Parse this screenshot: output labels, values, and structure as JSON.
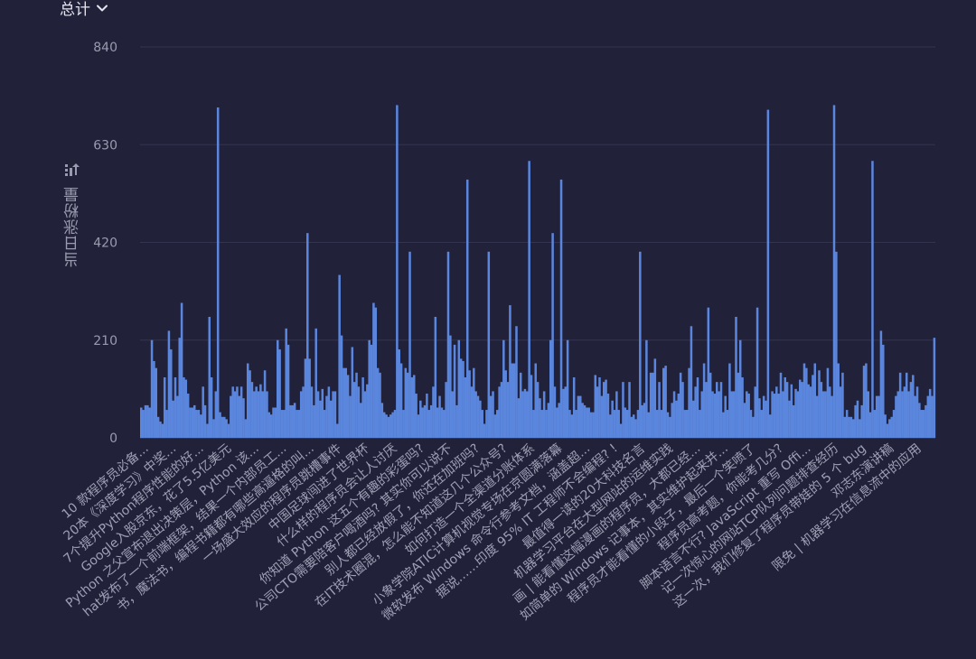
{
  "header": {
    "metric_label": "总计"
  },
  "y_axis_icon": "sort-icon",
  "colors": {
    "background": "#22213a",
    "bar": "#5b86dd",
    "grid": "#34344f",
    "axis_text": "#9a9bb0"
  },
  "chart_data": {
    "type": "bar",
    "ylabel": "当日涨粉量",
    "ylim": [
      0,
      840
    ],
    "yticks": [
      0,
      210,
      420,
      630,
      840
    ],
    "grid": true,
    "x_labels": [
      "10 款程序员必备...",
      "20本《深度学习》中奖...",
      "7个提升Python程序性能的好...",
      "Google入股京东，花了5.5亿美元",
      "Python 之父宣布退出决策层，Python 该...",
      "hat发布了一个前端框架，结果一个内部员工...",
      "书，魔法书，编程书籍都有哪些高逼格的叫...",
      "一场盛大效应的程序员跳槽事件",
      "中国足球闯进了世界杯",
      "什么样的程序员会让人讨厌",
      "你知道 Python 这五个有趣的彩蛋吗?",
      "公司CTO需要陪客户喝酒吗? 其实你可以说不",
      "别人都已经放假了，你还在加班吗?",
      "在IT技术圈混，怎么能不知道这几个公众号?",
      "如何打造一个全渠道分账体系",
      "小象学院ATIC计算机视觉专场在京圆满落幕",
      "微软发布 Windows 命令行参考文档，涵盖超...",
      "据说……印度 95% IT 工程师不会编程? !",
      "最值得一读的20大科技名言",
      "机器学习平台在大型网站的运维实践",
      "画 | 能看懂这幅漫画的程序员，大都已经...",
      "如简单的 Windows 记事本，其实维护起来并...",
      "程序员才能看懂的小段子，最后一个笑喷了",
      "程序员高考题，你能考几分?",
      "脚本语言不行? JavaScript 重写 Offi...",
      "记一次惊心的网站TCP队列问题排查经历",
      "这一次，我们修复了程序员带娃的 5 个 bug",
      "邓志东演讲稿",
      "限免 | 机器学习在信息流中的应用"
    ],
    "values": [
      65,
      60,
      70,
      70,
      65,
      210,
      165,
      150,
      45,
      35,
      30,
      130,
      60,
      230,
      190,
      80,
      130,
      90,
      215,
      290,
      130,
      125,
      95,
      65,
      65,
      70,
      60,
      60,
      50,
      110,
      70,
      30,
      260,
      130,
      40,
      100,
      710,
      55,
      45,
      45,
      40,
      30,
      90,
      110,
      100,
      110,
      90,
      110,
      85,
      40,
      160,
      145,
      120,
      100,
      110,
      100,
      115,
      100,
      145,
      100,
      55,
      50,
      65,
      65,
      210,
      190,
      60,
      60,
      235,
      200,
      70,
      70,
      75,
      60,
      60,
      100,
      110,
      170,
      440,
      170,
      110,
      70,
      235,
      100,
      80,
      105,
      60,
      90,
      110,
      80,
      100,
      100,
      30,
      350,
      220,
      150,
      150,
      135,
      90,
      195,
      120,
      140,
      110,
      75,
      130,
      100,
      115,
      210,
      200,
      290,
      280,
      150,
      140,
      75,
      55,
      50,
      45,
      50,
      55,
      60,
      715,
      190,
      160,
      60,
      150,
      140,
      400,
      130,
      135,
      95,
      50,
      80,
      65,
      70,
      95,
      60,
      70,
      110,
      260,
      65,
      90,
      65,
      60,
      120,
      400,
      220,
      100,
      200,
      70,
      210,
      170,
      165,
      130,
      555,
      145,
      110,
      150,
      100,
      90,
      80,
      60,
      30,
      60,
      400,
      90,
      100,
      50,
      60,
      110,
      120,
      210,
      145,
      120,
      285,
      160,
      160,
      240,
      85,
      140,
      100,
      105,
      100,
      595,
      135,
      60,
      160,
      120,
      85,
      60,
      100,
      60,
      75,
      210,
      440,
      110,
      65,
      75,
      555,
      105,
      110,
      210,
      60,
      50,
      130,
      60,
      90,
      90,
      75,
      70,
      65,
      65,
      55,
      55,
      135,
      110,
      130,
      90,
      120,
      125,
      95,
      50,
      80,
      60,
      100,
      60,
      30,
      120,
      65,
      60,
      120,
      45,
      50,
      40,
      60,
      400,
      70,
      75,
      210,
      55,
      140,
      140,
      170,
      60,
      120,
      60,
      150,
      155,
      55,
      45,
      75,
      100,
      80,
      95,
      140,
      120,
      60,
      60,
      150,
      240,
      80,
      110,
      130,
      60,
      100,
      160,
      120,
      280,
      140,
      100,
      95,
      120,
      100,
      120,
      55,
      90,
      60,
      160,
      100,
      100,
      260,
      140,
      210,
      130,
      75,
      100,
      95,
      60,
      45,
      110,
      280,
      85,
      60,
      90,
      80,
      705,
      50,
      100,
      95,
      110,
      95,
      140,
      100,
      130,
      120,
      80,
      115,
      70,
      105,
      100,
      125,
      120,
      160,
      150,
      115,
      110,
      135,
      160,
      90,
      145,
      120,
      100,
      100,
      150,
      110,
      90,
      715,
      400,
      160,
      110,
      140,
      45,
      60,
      45,
      45,
      40,
      70,
      80,
      40,
      70,
      155,
      160,
      100,
      55,
      595,
      60,
      90,
      90,
      230,
      200,
      50,
      30,
      40,
      45,
      60,
      90,
      100,
      140,
      100,
      110,
      140,
      100,
      120,
      135,
      90,
      110,
      75,
      60,
      60,
      70,
      90,
      105,
      90,
      215
    ]
  }
}
